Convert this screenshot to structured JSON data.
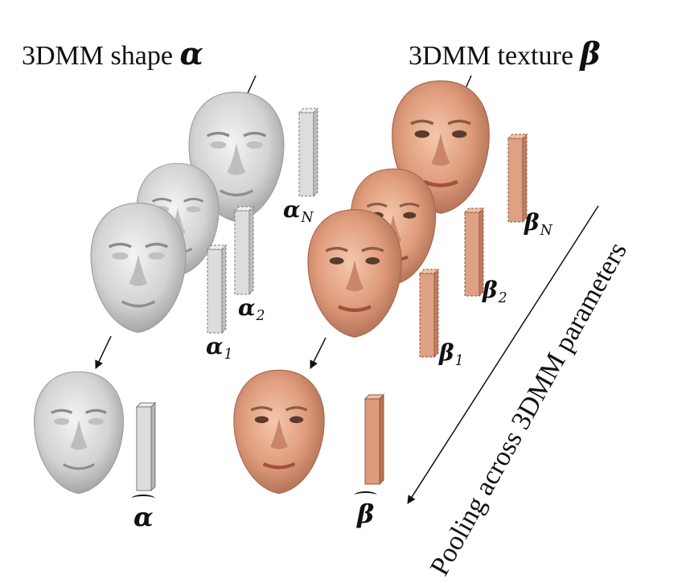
{
  "shape_title": "3DMM shape",
  "shape_symbol": "α",
  "texture_title": "3DMM texture",
  "texture_symbol": "β",
  "labels": {
    "alpha_N": {
      "base": "α",
      "sub": "N"
    },
    "alpha_2": {
      "base": "α",
      "sub": "2"
    },
    "alpha_1": {
      "base": "α",
      "sub": "1"
    },
    "alpha_hat": {
      "base": "α"
    },
    "beta_N": {
      "base": "β",
      "sub": "N"
    },
    "beta_2": {
      "base": "β",
      "sub": "2"
    },
    "beta_1": {
      "base": "β",
      "sub": "1"
    },
    "beta_hat": {
      "base": "β"
    }
  },
  "pooling_label": "Pooling across 3DMM parameters",
  "colors": {
    "shape_face": "#d2d2d2",
    "shape_bar": "#d8d8d8",
    "texture_face": "#e6a88a",
    "texture_bar": "#d99a7a",
    "text": "#111111"
  },
  "icons": [
    "face-mesh-icon",
    "face-textured-icon",
    "parameter-bar-icon",
    "arrow-icon"
  ]
}
